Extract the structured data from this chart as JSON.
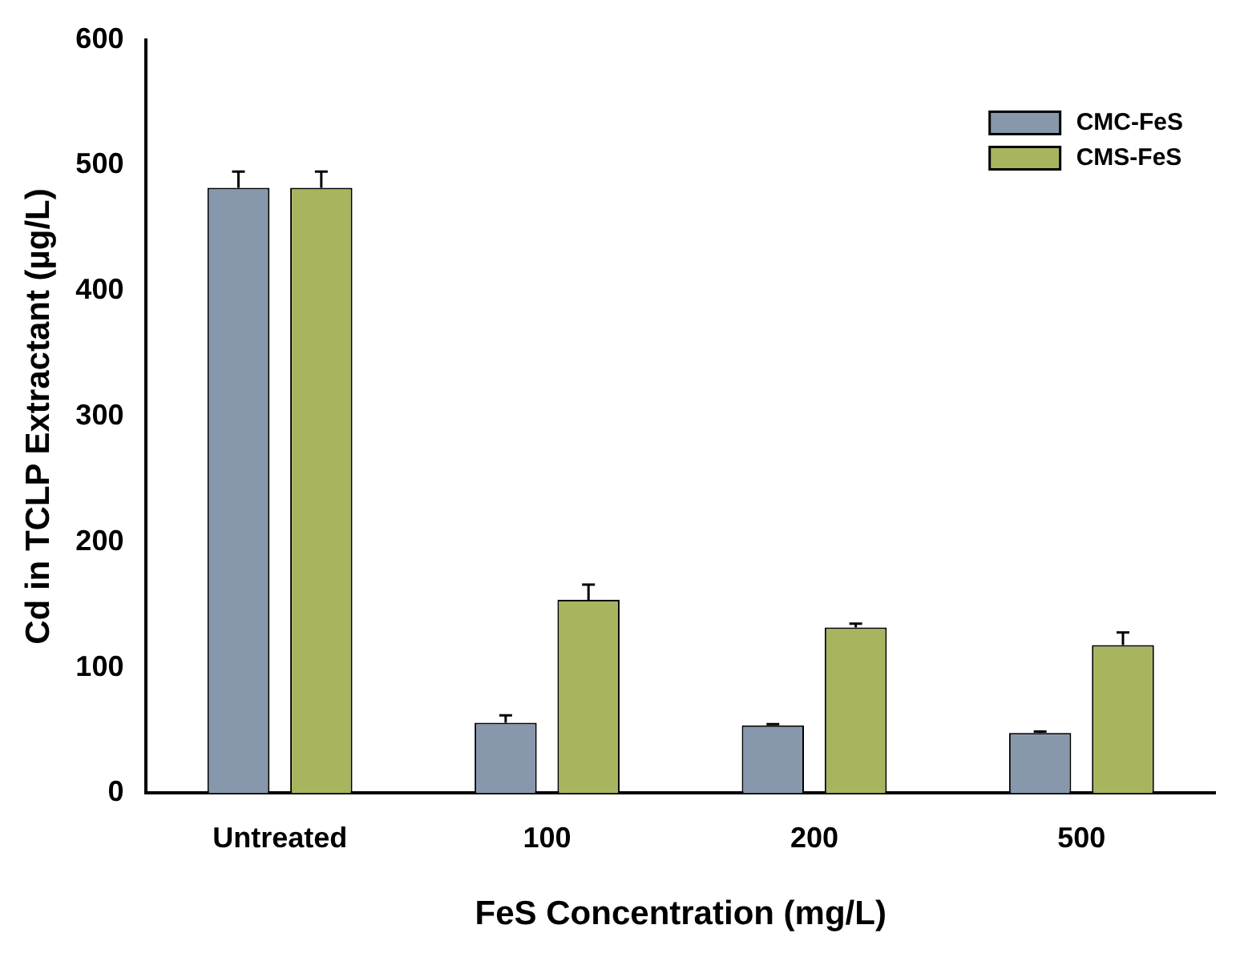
{
  "chart_data": {
    "type": "bar",
    "xlabel": "FeS Concentration (mg/L)",
    "ylabel": "Cd in TCLP Extractant (µg/L)",
    "categories": [
      "Untreated",
      "100",
      "200",
      "500"
    ],
    "series": [
      {
        "name": "CMC-FeS",
        "color": "#8797ac",
        "values": [
          482,
          56,
          54,
          48
        ],
        "errors": [
          [
            482,
            495
          ],
          [
            56,
            62
          ],
          [
            54,
            55
          ],
          [
            48,
            49
          ]
        ]
      },
      {
        "name": "CMS-FeS",
        "color": "#a9b45e",
        "values": [
          482,
          154,
          132,
          118
        ],
        "errors": [
          [
            482,
            495
          ],
          [
            154,
            166
          ],
          [
            132,
            135
          ],
          [
            118,
            128
          ]
        ]
      }
    ],
    "ylim": [
      0,
      600
    ],
    "yticks": [
      0,
      100,
      200,
      300,
      400,
      500,
      600
    ],
    "grid": false,
    "legend": "top right"
  }
}
